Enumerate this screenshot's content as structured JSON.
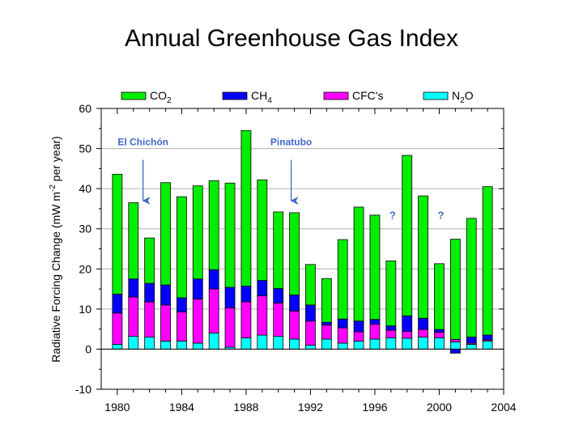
{
  "chart_data": {
    "type": "bar",
    "stacked": true,
    "title": "Annual Greenhouse Gas Index",
    "ylabel": "Radiative Forcing Change (mW m⁻² per year)",
    "xlabel": "",
    "ylim": [
      -10,
      60
    ],
    "xlim": [
      1979,
      2004
    ],
    "yticks": [
      "-10",
      "0",
      "10",
      "20",
      "30",
      "40",
      "50",
      "60"
    ],
    "xticks": [
      "1980",
      "1984",
      "1988",
      "1992",
      "1996",
      "2000",
      "2004"
    ],
    "grid": "horizontal",
    "legend_position": "top",
    "x": [
      1980,
      1981,
      1982,
      1983,
      1984,
      1985,
      1986,
      1987,
      1988,
      1989,
      1990,
      1991,
      1992,
      1993,
      1994,
      1995,
      1996,
      1997,
      1998,
      1999,
      2000,
      2001,
      2002,
      2003
    ],
    "series": [
      {
        "name": "N2O",
        "label_main": "N",
        "label_sub": "2",
        "label_tail": "O",
        "color": "#00ffff",
        "values": [
          1.2,
          3.2,
          3.0,
          2.0,
          2.0,
          1.5,
          4.0,
          0.5,
          2.8,
          3.5,
          3.2,
          2.5,
          1.0,
          2.5,
          1.5,
          2.0,
          2.5,
          2.8,
          2.7,
          3.0,
          2.8,
          1.8,
          1.2,
          2.0
        ]
      },
      {
        "name": "CFC's",
        "label_main": "CFC's",
        "label_sub": "",
        "label_tail": "",
        "color": "#ff00ff",
        "values": [
          7.8,
          9.8,
          8.8,
          9.0,
          7.3,
          11.0,
          11.0,
          9.8,
          9.0,
          9.8,
          8.3,
          7.0,
          6.0,
          3.5,
          3.8,
          2.3,
          3.7,
          1.9,
          1.7,
          1.9,
          1.4,
          0.6,
          0.3,
          0.3
        ]
      },
      {
        "name": "CH4",
        "label_main": "CH",
        "label_sub": "4",
        "label_tail": "",
        "color": "#0000ff",
        "values": [
          4.7,
          4.5,
          4.6,
          5.0,
          3.5,
          5.0,
          4.8,
          5.1,
          3.9,
          3.8,
          3.6,
          4.0,
          4.0,
          0.7,
          2.2,
          2.7,
          1.2,
          1.1,
          3.9,
          2.8,
          0.7,
          -1.0,
          1.5,
          1.2
        ]
      },
      {
        "name": "CO2",
        "label_main": "CO",
        "label_sub": "2",
        "label_tail": "",
        "color": "#00ee00",
        "values": [
          29.9,
          19.0,
          11.3,
          25.5,
          25.2,
          23.2,
          22.2,
          26.0,
          38.8,
          25.1,
          19.1,
          20.5,
          10.1,
          10.9,
          19.8,
          28.4,
          26.0,
          16.2,
          40.0,
          30.5,
          16.4,
          25.0,
          29.6,
          37.0
        ]
      }
    ],
    "totals": [
      43.6,
      36.5,
      27.7,
      41.5,
      38.0,
      40.7,
      42.0,
      41.4,
      54.5,
      42.2,
      34.2,
      34.0,
      21.1,
      17.6,
      27.3,
      35.4,
      33.4,
      22.0,
      48.3,
      38.2,
      21.3,
      27.4,
      32.6,
      40.5
    ],
    "annotations": [
      {
        "text": "El Chichón",
        "x": 1981.6,
        "y_text": 50.8,
        "arrow_from": 47.2,
        "arrow_to": 37.0
      },
      {
        "text": "Pinatubo",
        "x": 1990.8,
        "y_text": 50.8,
        "arrow_from": 47.2,
        "arrow_to": 37.0
      }
    ],
    "question_marks": [
      {
        "text": "?",
        "x": 1997.1,
        "y": 32.5
      },
      {
        "text": "?",
        "x": 2000.1,
        "y": 32.5
      }
    ]
  }
}
